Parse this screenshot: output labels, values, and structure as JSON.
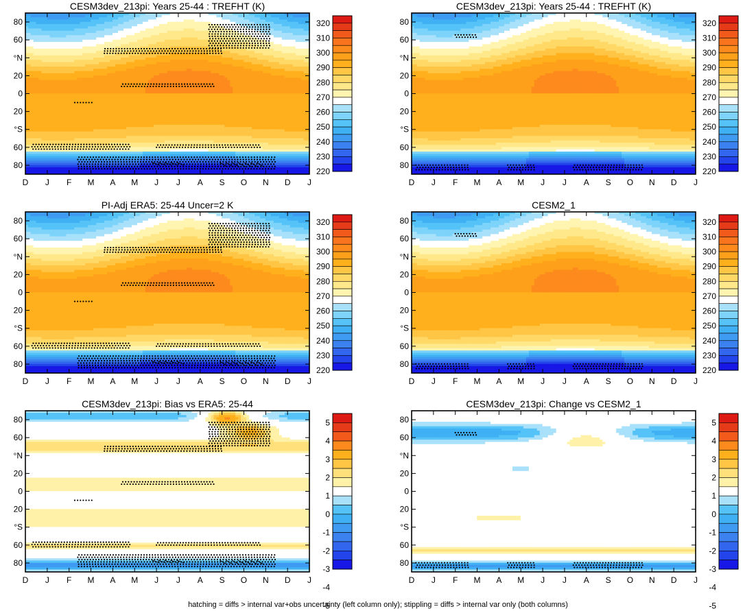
{
  "caption": "hatching = diffs > internal var+obs uncertainty (left column only); stippling = diffs > internal var only (both columns)",
  "colors": {
    "abs_scale": [
      "#1717e6",
      "#2244ea",
      "#3366ee",
      "#3b82f0",
      "#3f9af2",
      "#40b0f4",
      "#55c3f7",
      "#7dd3f9",
      "#a9e1fb",
      "#ffffff",
      "#fff5b0",
      "#ffe88a",
      "#ffd866",
      "#ffc544",
      "#ffb01c",
      "#ffa01a",
      "#fd8a1c",
      "#f9741d",
      "#f15a1b",
      "#e63b18",
      "#dd1a14"
    ],
    "diff_scale": [
      "#1717e6",
      "#2244ea",
      "#3366ee",
      "#3b82f0",
      "#3f9af2",
      "#40b0f4",
      "#55c3f7",
      "#a9e1fb",
      "#ffffff",
      "#fff2a8",
      "#ffe07a",
      "#ffc544",
      "#ffb01c",
      "#fd8a1c",
      "#f15a1b",
      "#e63b18",
      "#dd1a14"
    ]
  },
  "chart_data": [
    {
      "type": "heatmap",
      "id": "p1",
      "title": "CESM3dev_213pi: Years 25-44 : TREFHT (K)",
      "x_tick_labels": [
        "D",
        "J",
        "F",
        "M",
        "A",
        "M",
        "J",
        "J",
        "A",
        "S",
        "O",
        "N",
        "D",
        "J"
      ],
      "y_tick_labels": [
        "80",
        "60",
        "°N",
        "20",
        "0",
        "20",
        "°S",
        "60",
        "80"
      ],
      "ylim": [
        -90,
        90
      ],
      "xlim": [
        0,
        13
      ],
      "colorbar_labels": [
        "320",
        "310",
        "300",
        "290",
        "280",
        "270",
        "260",
        "250",
        "240",
        "230",
        "220"
      ],
      "field": "abs",
      "stipple_regions": "model",
      "hatching": true
    },
    {
      "type": "heatmap",
      "id": "p2",
      "title": "CESM3dev_213pi: Years 25-44 : TREFHT (K)",
      "x_tick_labels": [
        "D",
        "J",
        "F",
        "M",
        "A",
        "M",
        "J",
        "J",
        "A",
        "S",
        "O",
        "N",
        "D",
        "J"
      ],
      "y_tick_labels": [
        "80",
        "60",
        "°N",
        "20",
        "0",
        "20",
        "°S",
        "60",
        "80"
      ],
      "ylim": [
        -90,
        90
      ],
      "xlim": [
        0,
        13
      ],
      "colorbar_labels": [
        "320",
        "310",
        "300",
        "290",
        "280",
        "270",
        "260",
        "250",
        "240",
        "230",
        "220"
      ],
      "field": "abs",
      "stipple_regions": "antarctic",
      "hatching": false
    },
    {
      "type": "heatmap",
      "id": "p3",
      "title": "PI-Adj ERA5: 25-44 Uncer=2 K",
      "x_tick_labels": [
        "D",
        "J",
        "F",
        "M",
        "A",
        "M",
        "J",
        "J",
        "A",
        "S",
        "O",
        "N",
        "D",
        "J"
      ],
      "y_tick_labels": [
        "80",
        "60",
        "°N",
        "20",
        "0",
        "20",
        "°S",
        "60",
        "80"
      ],
      "ylim": [
        -90,
        90
      ],
      "xlim": [
        0,
        13
      ],
      "colorbar_labels": [
        "320",
        "310",
        "300",
        "290",
        "280",
        "270",
        "260",
        "250",
        "240",
        "230",
        "220"
      ],
      "field": "abs",
      "stipple_regions": "model",
      "hatching": true
    },
    {
      "type": "heatmap",
      "id": "p4",
      "title": "CESM2_1",
      "x_tick_labels": [
        "D",
        "J",
        "F",
        "M",
        "A",
        "M",
        "J",
        "J",
        "A",
        "S",
        "O",
        "N",
        "D",
        "J"
      ],
      "y_tick_labels": [
        "80",
        "60",
        "°N",
        "20",
        "0",
        "20",
        "°S",
        "60",
        "80"
      ],
      "ylim": [
        -90,
        90
      ],
      "xlim": [
        0,
        13
      ],
      "colorbar_labels": [
        "320",
        "310",
        "300",
        "290",
        "280",
        "270",
        "260",
        "250",
        "240",
        "230",
        "220"
      ],
      "field": "abs",
      "stipple_regions": "antarctic",
      "hatching": false
    },
    {
      "type": "heatmap",
      "id": "p5",
      "title": "CESM3dev_213pi: Bias vs ERA5: 25-44",
      "x_tick_labels": [
        "D",
        "J",
        "F",
        "M",
        "A",
        "M",
        "J",
        "J",
        "A",
        "S",
        "O",
        "N",
        "D",
        "J"
      ],
      "y_tick_labels": [
        "80",
        "60",
        "°N",
        "20",
        "0",
        "20",
        "°S",
        "60",
        "80"
      ],
      "ylim": [
        -90,
        90
      ],
      "xlim": [
        0,
        13
      ],
      "colorbar_labels": [
        "5",
        "4",
        "3",
        "2",
        "1",
        "0",
        "-1",
        "-2",
        "-3",
        "-4",
        "-5"
      ],
      "field": "bias",
      "stipple_regions": "model",
      "hatching": true
    },
    {
      "type": "heatmap",
      "id": "p6",
      "title": "CESM3dev_213pi: Change vs CESM2_1",
      "x_tick_labels": [
        "D",
        "J",
        "F",
        "M",
        "A",
        "M",
        "J",
        "J",
        "A",
        "S",
        "O",
        "N",
        "D",
        "J"
      ],
      "y_tick_labels": [
        "80",
        "60",
        "°N",
        "20",
        "0",
        "20",
        "°S",
        "60",
        "80"
      ],
      "ylim": [
        -90,
        90
      ],
      "xlim": [
        0,
        13
      ],
      "colorbar_labels": [
        "5",
        "4",
        "3",
        "2",
        "1",
        "0",
        "-1",
        "-2",
        "-3",
        "-4",
        "-5"
      ],
      "field": "change",
      "stipple_regions": "antarctic",
      "hatching": false
    }
  ]
}
